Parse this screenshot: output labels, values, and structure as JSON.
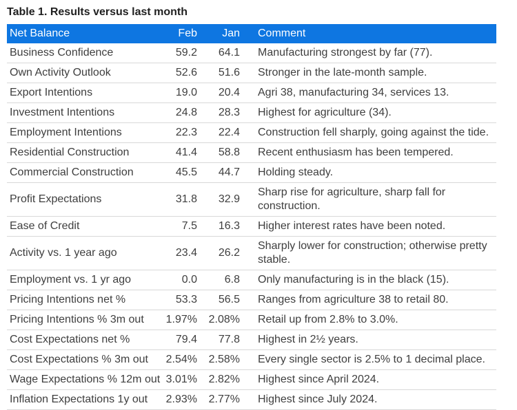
{
  "title": "Table 1. Results versus last month",
  "colors": {
    "header_bg": "#0e76e1",
    "header_text": "#ffffff",
    "row_border": "#d8d8d8",
    "text": "#3e3e3e",
    "title_text": "#1f1f1f",
    "page_bg": "#ffffff"
  },
  "table": {
    "columns": [
      "Net Balance",
      "Feb",
      "Jan",
      "Comment"
    ],
    "rows": [
      {
        "label": "Business Confidence",
        "feb": "59.2",
        "jan": "64.1",
        "comment": "Manufacturing strongest by far (77)."
      },
      {
        "label": "Own Activity Outlook",
        "feb": "52.6",
        "jan": "51.6",
        "comment": "Stronger in the late-month sample."
      },
      {
        "label": "Export Intentions",
        "feb": "19.0",
        "jan": "20.4",
        "comment": "Agri 38, manufacturing 34, services 13."
      },
      {
        "label": "Investment Intentions",
        "feb": "24.8",
        "jan": "28.3",
        "comment": "Highest for agriculture (34)."
      },
      {
        "label": "Employment Intentions",
        "feb": "22.3",
        "jan": "22.4",
        "comment": "Construction fell sharply, going against the tide."
      },
      {
        "label": "Residential Construction",
        "feb": "41.4",
        "jan": "58.8",
        "comment": "Recent enthusiasm has been tempered."
      },
      {
        "label": "Commercial Construction",
        "feb": "45.5",
        "jan": "44.7",
        "comment": "Holding steady."
      },
      {
        "label": "Profit Expectations",
        "feb": "31.8",
        "jan": "32.9",
        "comment": "Sharp rise for agriculture, sharp fall for construction."
      },
      {
        "label": "Ease of Credit",
        "feb": "7.5",
        "jan": "16.3",
        "comment": "Higher interest rates have been noted."
      },
      {
        "label": "Activity vs. 1 year ago",
        "feb": "23.4",
        "jan": "26.2",
        "comment": "Sharply lower for construction; otherwise pretty stable."
      },
      {
        "label": "Employment vs. 1 yr ago",
        "feb": "0.0",
        "jan": "6.8",
        "comment": "Only manufacturing is in the black (15)."
      },
      {
        "label": "Pricing Intentions net %",
        "feb": "53.3",
        "jan": "56.5",
        "comment": "Ranges from agriculture 38 to retail 80."
      },
      {
        "label": "Pricing Intentions % 3m out",
        "feb": "1.97%",
        "jan": "2.08%",
        "comment": "Retail up from 2.8% to 3.0%."
      },
      {
        "label": "Cost Expectations net %",
        "feb": "79.4",
        "jan": "77.8",
        "comment": "Highest in 2½ years."
      },
      {
        "label": "Cost Expectations % 3m out",
        "feb": "2.54%",
        "jan": "2.58%",
        "comment": "Every single sector is 2.5% to 1 decimal place."
      },
      {
        "label": "Wage Expectations % 12m out",
        "feb": "3.01%",
        "jan": "2.82%",
        "comment": "Highest since April 2024."
      },
      {
        "label": "Inflation Expectations 1y out",
        "feb": "2.93%",
        "jan": "2.77%",
        "comment": "Highest since July 2024."
      }
    ]
  }
}
